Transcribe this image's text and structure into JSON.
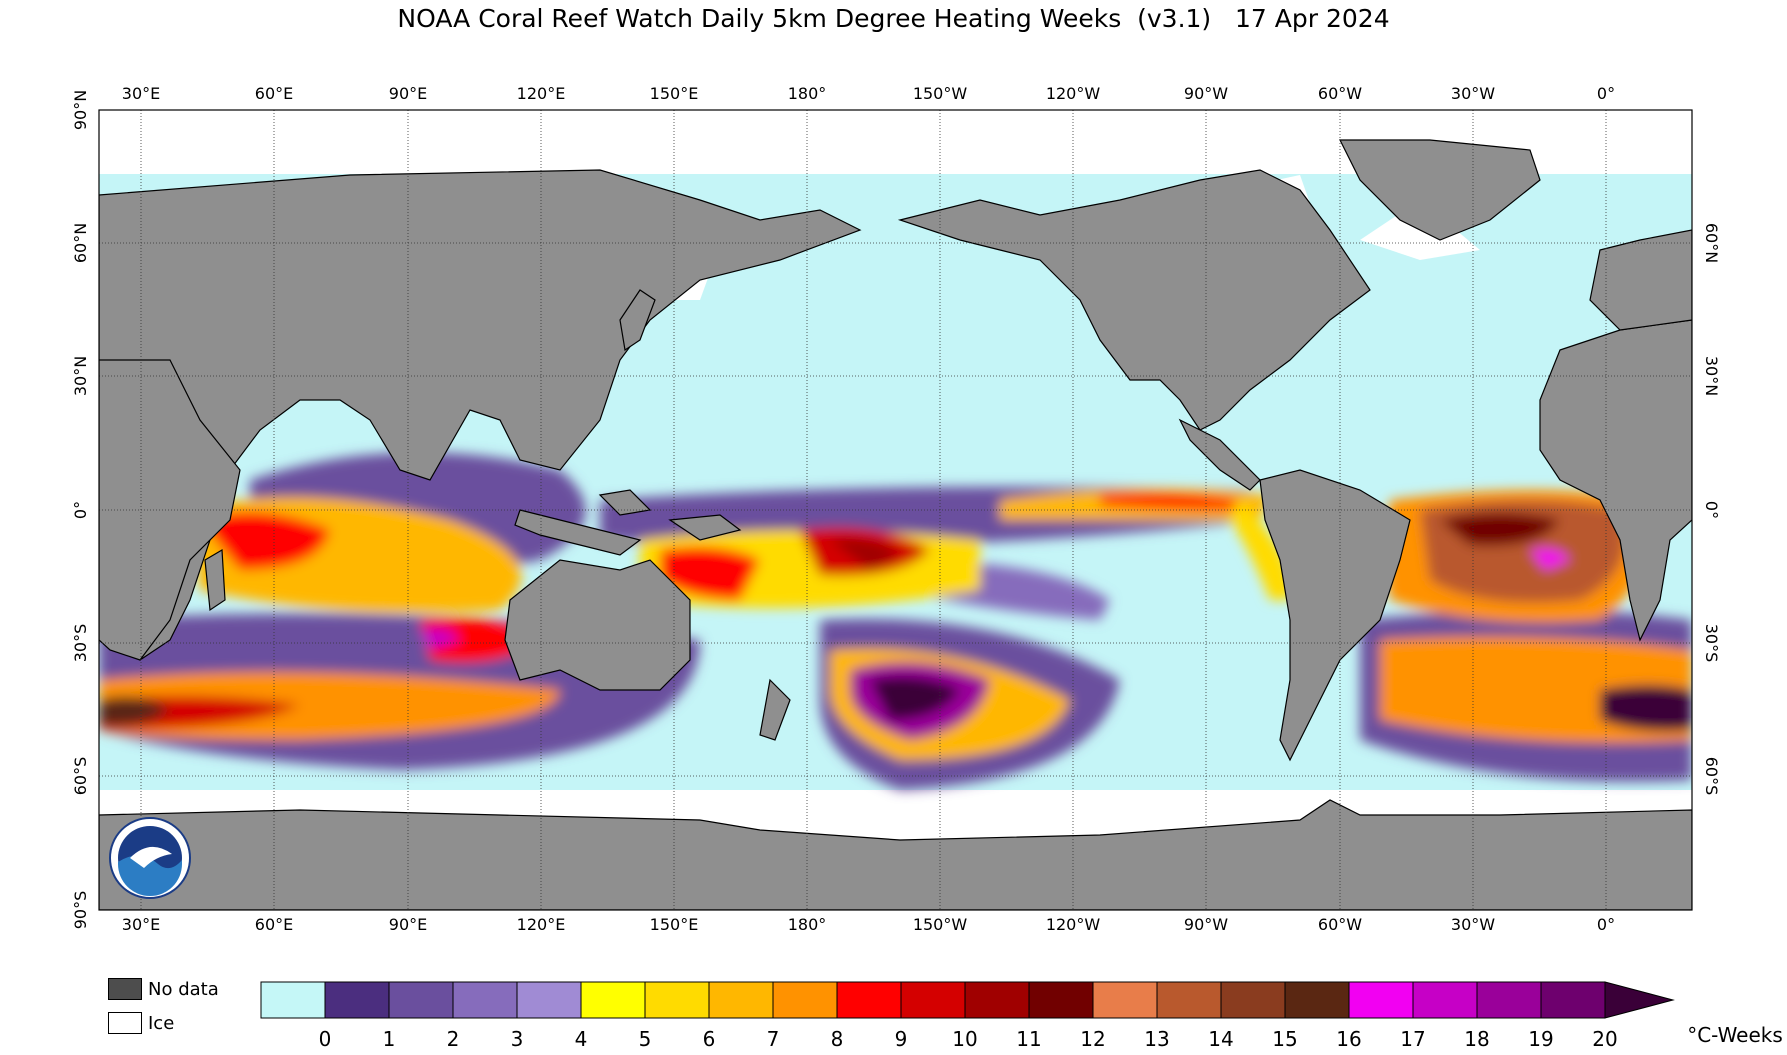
{
  "title": "NOAA Coral Reef Watch Daily 5km Degree Heating Weeks  (v3.1)   17 Apr 2024",
  "lon_labels": [
    "30°E",
    "60°E",
    "90°E",
    "120°E",
    "150°E",
    "180°",
    "150°W",
    "120°W",
    "90°W",
    "60°W",
    "30°W",
    "0°"
  ],
  "lat_labels_left": [
    "90°N",
    "60°N",
    "30°N",
    "0°",
    "30°S",
    "60°S",
    "90°S"
  ],
  "lat_labels_right": [
    "60°N",
    "30°N",
    "0°",
    "30°S",
    "60°S"
  ],
  "legend": {
    "no_data": {
      "label": "No data",
      "color": "#4d4d4d"
    },
    "ice": {
      "label": "Ice",
      "color": "#ffffff"
    }
  },
  "colors": {
    "land": "#8f8f8f",
    "ocean_low": "#c5f5f7",
    "frame": "#000000",
    "grid": "#333333"
  },
  "colorbar": {
    "unit": "°C-Weeks",
    "tick_labels": [
      "0",
      "1",
      "2",
      "3",
      "4",
      "5",
      "6",
      "7",
      "8",
      "9",
      "10",
      "11",
      "12",
      "13",
      "14",
      "15",
      "16",
      "17",
      "18",
      "19",
      "20"
    ],
    "colors": [
      "#c5f7f7",
      "#4b2e7f",
      "#6a4f9e",
      "#866cbc",
      "#a08bd4",
      "#ffff00",
      "#ffdb00",
      "#ffb700",
      "#ff9200",
      "#ff0000",
      "#d40000",
      "#a00000",
      "#710000",
      "#e87d4a",
      "#b9592d",
      "#8a3c1f",
      "#5a2712",
      "#f200f2",
      "#c600c6",
      "#9a009a",
      "#6e006e",
      "#3a0038"
    ]
  }
}
